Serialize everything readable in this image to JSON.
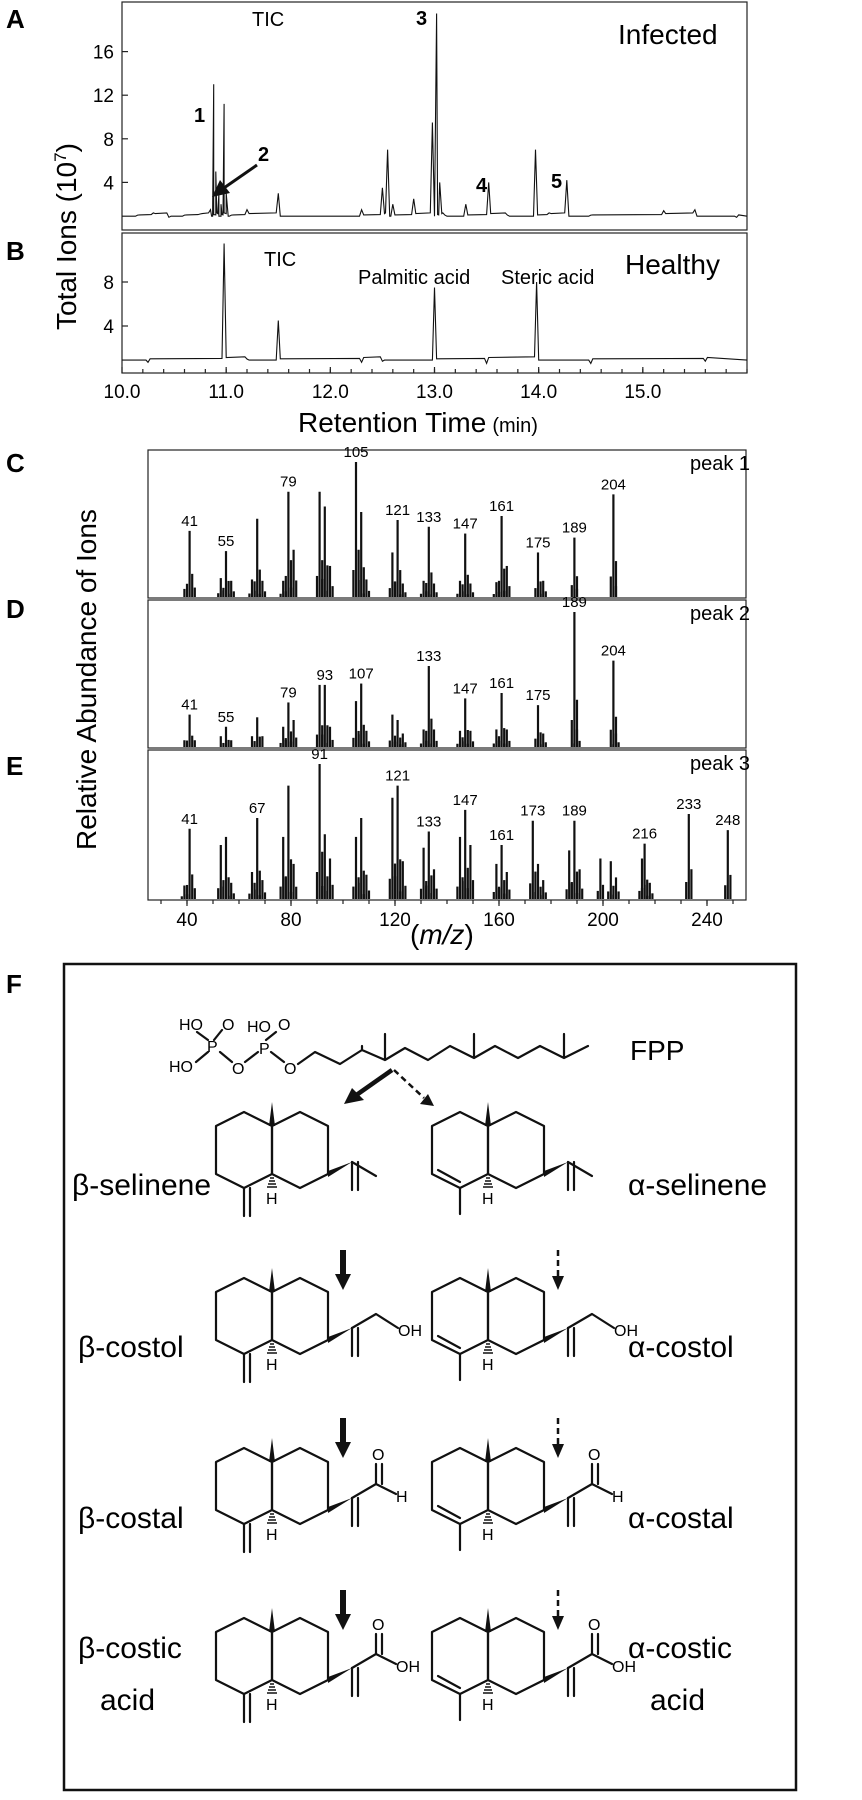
{
  "panels": {
    "A": {
      "label": "A",
      "title": "TIC",
      "condition": "Infected",
      "peak_labels": [
        "1",
        "2",
        "3",
        "4",
        "5"
      ]
    },
    "B": {
      "label": "B",
      "title": "TIC",
      "condition": "Healthy",
      "annotations": [
        "Palmitic acid",
        "Steric acid"
      ]
    },
    "C": {
      "label": "C",
      "name": "peak 1"
    },
    "D": {
      "label": "D",
      "name": "peak 2"
    },
    "E": {
      "label": "E",
      "name": "peak 3"
    },
    "F": {
      "label": "F"
    }
  },
  "axes": {
    "tic_ylabel_main": "Total Ions (10",
    "tic_ylabel_exp": "7",
    "tic_ylabel_end": ")",
    "tic_xlabel": "Retention Time",
    "tic_xlabel_unit": "(min)",
    "ms_ylabel": "Relative Abundance of Ions",
    "ms_xlabel_open": "(",
    "ms_xlabel_var": "m/z",
    "ms_xlabel_close": ")"
  },
  "chart_data": [
    {
      "type": "line",
      "panel": "A",
      "title": "TIC",
      "series": [
        {
          "name": "Infected",
          "x": [
            10.15,
            10.3,
            10.45,
            10.6,
            10.75,
            10.85,
            10.88,
            10.9,
            10.93,
            10.95,
            10.98,
            11.0,
            11.05,
            11.2,
            11.5,
            12.3,
            12.5,
            12.55,
            12.6,
            12.8,
            12.98,
            13.02,
            13.05,
            13.1,
            13.3,
            13.52,
            13.7,
            13.97,
            14.1,
            14.27,
            14.5,
            15.2,
            15.5,
            15.9
          ],
          "y": [
            1.0,
            1.2,
            0.8,
            1.0,
            1.1,
            1.5,
            13.0,
            5.0,
            3.0,
            2.0,
            11.2,
            3.0,
            1.0,
            1.5,
            3.0,
            1.5,
            3.5,
            7.0,
            2.0,
            2.5,
            9.5,
            19.5,
            4.0,
            1.0,
            2.0,
            4.0,
            1.0,
            7.0,
            1.2,
            4.2,
            1.0,
            1.4,
            1.5,
            0.8
          ]
        }
      ],
      "xlim": [
        10.0,
        16.0
      ],
      "ylim": [
        0,
        20
      ],
      "yticks": [
        4,
        8,
        12,
        16
      ],
      "xticks": [
        10.0,
        11.0,
        12.0,
        13.0,
        14.0,
        15.0
      ],
      "peaks": [
        {
          "label": "1",
          "rt": 10.88
        },
        {
          "label": "2",
          "rt": 10.93
        },
        {
          "label": "3",
          "rt": 13.05
        },
        {
          "label": "4",
          "rt": 13.52
        },
        {
          "label": "5",
          "rt": 14.27
        }
      ]
    },
    {
      "type": "line",
      "panel": "B",
      "title": "TIC",
      "series": [
        {
          "name": "Healthy",
          "x": [
            10.25,
            10.98,
            11.2,
            11.5,
            12.3,
            12.5,
            13.0,
            13.5,
            13.98,
            14.5,
            15.6
          ],
          "y": [
            0.7,
            11.5,
            1.0,
            4.5,
            0.7,
            0.8,
            7.5,
            0.6,
            8.0,
            0.6,
            0.8
          ]
        }
      ],
      "xlim": [
        10.0,
        16.0
      ],
      "ylim": [
        0,
        12
      ],
      "yticks": [
        4,
        8
      ],
      "annotations": [
        {
          "text": "Palmitic acid",
          "rt": 13.0
        },
        {
          "text": "Steric acid",
          "rt": 13.98
        }
      ]
    },
    {
      "type": "bar",
      "panel": "C",
      "name": "peak 1",
      "mz": [
        39,
        41,
        43,
        53,
        55,
        57,
        65,
        67,
        69,
        77,
        79,
        81,
        91,
        93,
        95,
        105,
        107,
        109,
        119,
        121,
        123,
        131,
        133,
        135,
        145,
        147,
        149,
        159,
        161,
        163,
        175,
        177,
        189,
        190,
        204,
        205
      ],
      "abundance": [
        6,
        49,
        7,
        14,
        34,
        12,
        13,
        58,
        12,
        12,
        78,
        35,
        78,
        67,
        23,
        100,
        63,
        13,
        33,
        57,
        10,
        12,
        52,
        10,
        12,
        47,
        10,
        11,
        60,
        23,
        33,
        12,
        44,
        6,
        76,
        8
      ],
      "labeled": [
        41,
        55,
        79,
        105,
        121,
        133,
        147,
        161,
        175,
        189,
        204
      ],
      "xlim": [
        25,
        255
      ],
      "ylim": [
        0,
        100
      ]
    },
    {
      "type": "bar",
      "panel": "D",
      "name": "peak 2",
      "mz": [
        39,
        41,
        43,
        53,
        55,
        57,
        65,
        67,
        69,
        77,
        79,
        81,
        91,
        93,
        95,
        105,
        107,
        109,
        119,
        121,
        123,
        131,
        133,
        135,
        145,
        147,
        149,
        159,
        161,
        163,
        175,
        177,
        189,
        190,
        204,
        205
      ],
      "abundance": [
        5,
        24,
        5,
        8,
        15,
        5,
        8,
        22,
        8,
        15,
        33,
        20,
        46,
        46,
        15,
        34,
        47,
        12,
        24,
        20,
        10,
        13,
        60,
        13,
        12,
        36,
        12,
        13,
        40,
        13,
        31,
        10,
        100,
        13,
        64,
        10
      ],
      "labeled": [
        41,
        55,
        79,
        93,
        107,
        133,
        147,
        161,
        175,
        189,
        204
      ],
      "xlim": [
        25,
        255
      ],
      "ylim": [
        0,
        100
      ]
    },
    {
      "type": "bar",
      "panel": "E",
      "name": "peak 3",
      "mz": [
        39,
        41,
        43,
        53,
        55,
        57,
        65,
        67,
        69,
        77,
        79,
        81,
        91,
        93,
        95,
        105,
        107,
        109,
        119,
        121,
        123,
        131,
        133,
        135,
        145,
        147,
        149,
        159,
        161,
        163,
        173,
        175,
        177,
        187,
        189,
        191,
        199,
        203,
        205,
        215,
        216,
        218,
        233,
        248
      ],
      "abundance": [
        10,
        52,
        8,
        40,
        46,
        12,
        20,
        60,
        14,
        46,
        84,
        26,
        100,
        48,
        30,
        46,
        60,
        18,
        75,
        84,
        28,
        38,
        50,
        22,
        46,
        66,
        40,
        26,
        40,
        20,
        58,
        26,
        14,
        36,
        58,
        22,
        30,
        28,
        16,
        30,
        41,
        12,
        63,
        51
      ],
      "labeled": [
        41,
        67,
        91,
        121,
        133,
        147,
        161,
        173,
        189,
        216,
        233,
        248
      ],
      "xlim": [
        25,
        255
      ],
      "ylim": [
        0,
        100
      ],
      "xticks": [
        40,
        80,
        120,
        160,
        200,
        240
      ]
    }
  ],
  "pathway": {
    "precursor": "FPP",
    "phosphate_labels": {
      "ho": "HO",
      "p": "P",
      "o": "O"
    },
    "beta": [
      {
        "name": "β-selinene"
      },
      {
        "name": "β-costol"
      },
      {
        "name": "β-costal"
      },
      {
        "name_line1": "β-costic",
        "name_line2": "acid"
      }
    ],
    "alpha": [
      {
        "name": "α-selinene"
      },
      {
        "name": "α-costol"
      },
      {
        "name": "α-costal"
      },
      {
        "name_line1": "α-costic",
        "name_line2": "acid"
      }
    ],
    "atom_h": "H",
    "atom_oh": "OH",
    "atom_o": "O"
  }
}
